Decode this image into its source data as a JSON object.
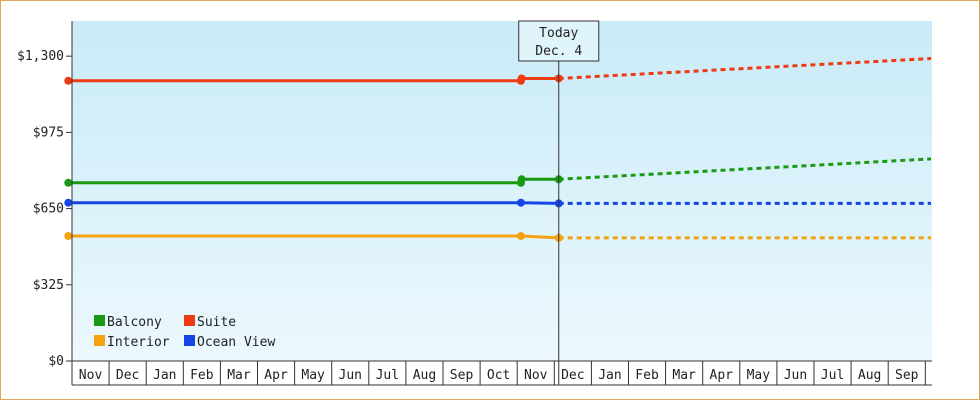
{
  "chart_data": {
    "type": "line",
    "y_axis": {
      "min": 0,
      "max": 1450,
      "ticks": [
        0,
        325,
        650,
        975,
        1300
      ],
      "tick_labels": [
        "$0",
        "$325",
        "$650",
        "$975",
        "$1,300"
      ]
    },
    "x_axis": {
      "months": [
        "Nov",
        "Dec",
        "Jan",
        "Feb",
        "Mar",
        "Apr",
        "May",
        "Jun",
        "Jul",
        "Aug",
        "Sep",
        "Oct",
        "Nov",
        "Dec",
        "Jan",
        "Feb",
        "Mar",
        "Apr",
        "May",
        "Jun",
        "Jul",
        "Aug",
        "Sep"
      ],
      "range": [
        0,
        23
      ]
    },
    "today_marker": {
      "line1": "Today",
      "line2": "Dec. 4",
      "x": 13.12
    },
    "series": [
      {
        "name": "Suite",
        "color": "#ee3a12",
        "history": [
          [
            -0.1,
            1195
          ],
          [
            12.1,
            1195
          ],
          [
            12.12,
            1205
          ],
          [
            13.12,
            1205
          ]
        ],
        "forecast": [
          [
            13.12,
            1205
          ],
          [
            23.3,
            1290
          ]
        ]
      },
      {
        "name": "Balcony",
        "color": "#1a9a14",
        "history": [
          [
            -0.1,
            760
          ],
          [
            12.1,
            760
          ],
          [
            12.12,
            775
          ],
          [
            13.12,
            775
          ]
        ],
        "forecast": [
          [
            13.12,
            775
          ],
          [
            23.3,
            862
          ]
        ]
      },
      {
        "name": "Ocean View",
        "color": "#1545e6",
        "history": [
          [
            -0.1,
            675
          ],
          [
            12.1,
            675
          ],
          [
            13.12,
            672
          ]
        ],
        "forecast": [
          [
            13.12,
            672
          ],
          [
            23.3,
            672
          ]
        ]
      },
      {
        "name": "Interior",
        "color": "#f4a211",
        "history": [
          [
            -0.1,
            533
          ],
          [
            12.1,
            533
          ],
          [
            13.12,
            525
          ]
        ],
        "forecast": [
          [
            13.12,
            525
          ],
          [
            23.3,
            525
          ]
        ]
      }
    ],
    "legend": [
      {
        "label": "Balcony",
        "color": "#1a9a14"
      },
      {
        "label": "Suite",
        "color": "#ee3a12"
      },
      {
        "label": "Interior",
        "color": "#f4a211"
      },
      {
        "label": "Ocean View",
        "color": "#1545e6"
      }
    ],
    "legend_position": "bottom-left",
    "grid": false,
    "background": "sky-gradient"
  }
}
